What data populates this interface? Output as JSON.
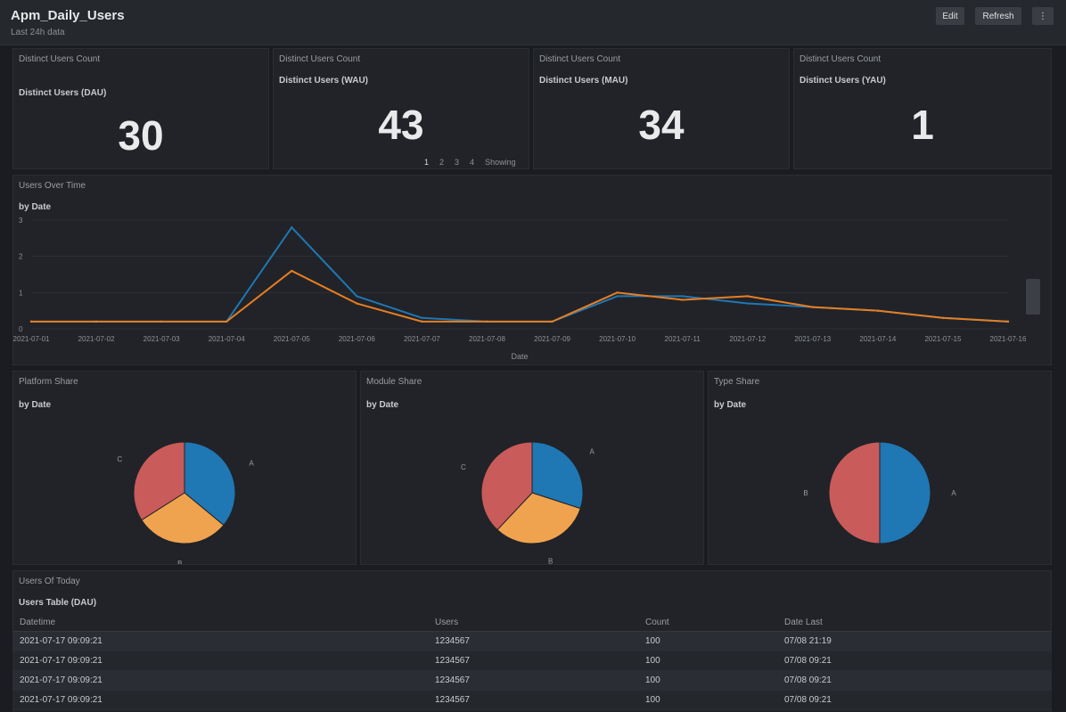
{
  "header": {
    "title": "Apm_Daily_Users",
    "subtitle": "Last 24h data",
    "buttons": [
      "Edit",
      "Refresh",
      "⋮"
    ]
  },
  "kpis": [
    {
      "title": "Distinct Users Count",
      "subtitle": "Distinct Users (DAU)",
      "value": "30"
    },
    {
      "title": "Distinct Users Count",
      "subtitle": "Distinct Users (WAU)",
      "value": "43"
    },
    {
      "title": "Distinct Users Count",
      "subtitle": "Distinct Users (MAU)",
      "value": "34"
    },
    {
      "title": "Distinct Users Count",
      "subtitle": "Distinct Users (YAU)",
      "value": "1"
    }
  ],
  "pager": {
    "pages": [
      "1",
      "2",
      "3",
      "4"
    ],
    "label": "Showing"
  },
  "line_panel": {
    "title": "Users Over Time",
    "subtitle": "by Date",
    "x_label": "Date"
  },
  "pie_panels": [
    {
      "title": "Platform Share",
      "subtitle": "by Date"
    },
    {
      "title": "Module Share",
      "subtitle": "by Date"
    },
    {
      "title": "Type Share",
      "subtitle": "by Date"
    }
  ],
  "table": {
    "title": "Users Of Today",
    "subtitle": "Users Table (DAU)",
    "columns": [
      "Datetime",
      "Users",
      "Count",
      "Date Last"
    ],
    "rows": [
      [
        "2021-07-17 09:09:21",
        "1234567",
        "100",
        "07/08 21:19"
      ],
      [
        "2021-07-17 09:09:21",
        "1234567",
        "100",
        "07/08 09:21"
      ],
      [
        "2021-07-17 09:09:21",
        "1234567",
        "100",
        "07/08 09:21"
      ],
      [
        "2021-07-17 09:09:21",
        "1234567",
        "100",
        "07/08 09:21"
      ]
    ]
  },
  "chart_data": [
    {
      "type": "line",
      "title": "Users Over Time",
      "xlabel": "Date",
      "ylabel": "",
      "ylim": [
        0,
        3
      ],
      "x": [
        "2021-07-01",
        "2021-07-02",
        "2021-07-03",
        "2021-07-04",
        "2021-07-05",
        "2021-07-06",
        "2021-07-07",
        "2021-07-08",
        "2021-07-09",
        "2021-07-10",
        "2021-07-11",
        "2021-07-12",
        "2021-07-13",
        "2021-07-14",
        "2021-07-15",
        "2021-07-16"
      ],
      "series": [
        {
          "name": "",
          "color": "#1f77b4",
          "values": [
            0.2,
            0.2,
            0.2,
            0.2,
            2.8,
            0.9,
            0.3,
            0.2,
            0.2,
            0.9,
            0.9,
            0.7,
            0.6,
            0.5,
            0.3,
            0.2
          ]
        },
        {
          "name": "",
          "color": "#e67e22",
          "values": [
            0.2,
            0.2,
            0.2,
            0.2,
            1.6,
            0.7,
            0.2,
            0.2,
            0.2,
            1.0,
            0.8,
            0.9,
            0.6,
            0.5,
            0.3,
            0.2
          ]
        }
      ]
    },
    {
      "type": "pie",
      "title": "Platform Share",
      "labels": [
        "A",
        "B",
        "C"
      ],
      "values": [
        36,
        30,
        34
      ],
      "colors": [
        "#1f77b4",
        "#f0a34e",
        "#c95b5b"
      ]
    },
    {
      "type": "pie",
      "title": "Module Share",
      "labels": [
        "A",
        "B",
        "C"
      ],
      "values": [
        30,
        32,
        38
      ],
      "colors": [
        "#1f77b4",
        "#f0a34e",
        "#c95b5b"
      ]
    },
    {
      "type": "pie",
      "title": "Type Share",
      "labels": [
        "A",
        "B"
      ],
      "values": [
        50,
        50
      ],
      "colors": [
        "#1f77b4",
        "#c95b5b"
      ]
    }
  ]
}
